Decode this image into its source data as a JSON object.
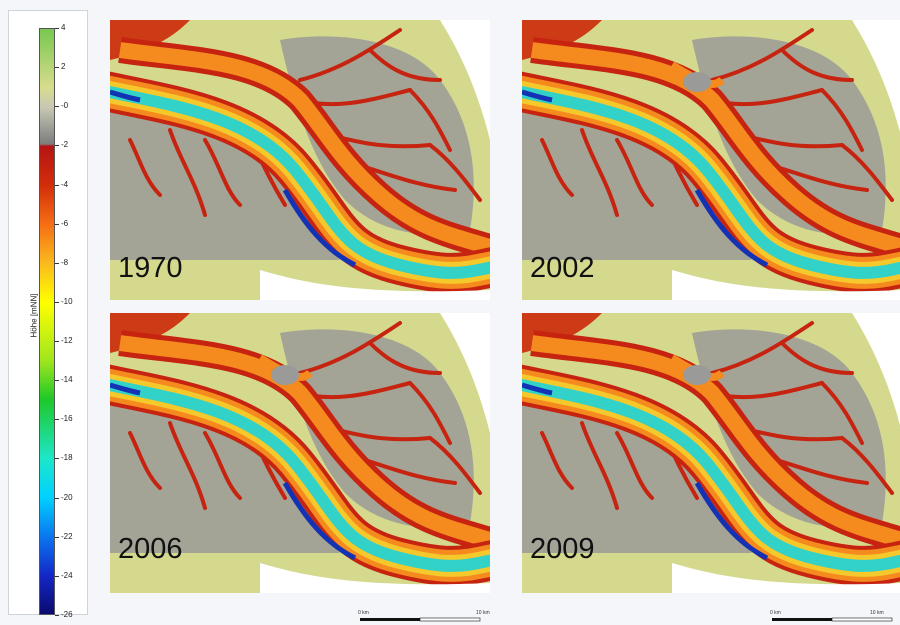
{
  "legend": {
    "title": "Höhe [mNN]",
    "ticks": [
      "4",
      "2",
      "-0",
      "-2",
      "-4",
      "-6",
      "-8",
      "-10",
      "-12",
      "-14",
      "-16",
      "-18",
      "-20",
      "-22",
      "-24",
      "-26"
    ],
    "stops": [
      {
        "v": 4,
        "color": "#78c850"
      },
      {
        "v": 1,
        "color": "#d7dc8c"
      },
      {
        "v": 0,
        "color": "#c8c8b4"
      },
      {
        "v": -1.9,
        "color": "#7d7d7d"
      },
      {
        "v": -2,
        "color": "#b41414"
      },
      {
        "v": -4,
        "color": "#d22d0a"
      },
      {
        "v": -6,
        "color": "#f56e14"
      },
      {
        "v": -8,
        "color": "#fab91e"
      },
      {
        "v": -10,
        "color": "#ffff00"
      },
      {
        "v": -13,
        "color": "#a0e61e"
      },
      {
        "v": -15,
        "color": "#1ec828"
      },
      {
        "v": -18,
        "color": "#1ee6c8"
      },
      {
        "v": -20,
        "color": "#00d2ff"
      },
      {
        "v": -22,
        "color": "#0a78f0"
      },
      {
        "v": -24,
        "color": "#1428c8"
      },
      {
        "v": -26,
        "color": "#0a0a6e"
      }
    ]
  },
  "panels": [
    {
      "year": "1970",
      "row": "bottom-label"
    },
    {
      "year": "2002",
      "row": "bottom-label"
    },
    {
      "year": "2006",
      "row": "bottom-label"
    },
    {
      "year": "2009",
      "row": "bottom-label"
    }
  ],
  "scale": {
    "left": "0 km",
    "right": "10 km"
  },
  "colors": {
    "land": "#d4d98e",
    "tidal_flat": "#9a9a98",
    "channel_shallow": "#c62410",
    "channel_mid": "#f58a1e",
    "channel_deep": "#f5c82c",
    "fairway": "#32d2c8",
    "deep_hole": "#1432b4"
  }
}
